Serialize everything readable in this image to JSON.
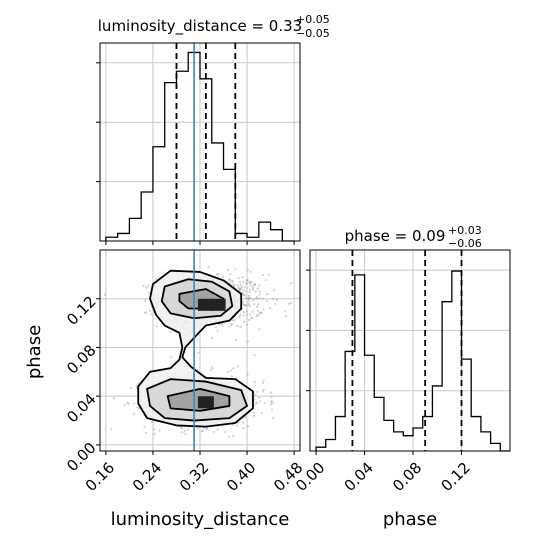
{
  "colors": {
    "truth": "#4682b4",
    "hist": "#000000",
    "grid": "#c8c8c8",
    "contour": "#000000",
    "scatter": "#9a9a9a"
  },
  "chart_data": [
    {
      "type": "histogram",
      "panel": "top-left",
      "parameter": "luminosity_distance",
      "title_main": "luminosity_distance = 0.33",
      "title_sup": "+0.05",
      "title_sub": "−0.05",
      "xlim": [
        0.15,
        0.49
      ],
      "ylim": [
        0,
        1
      ],
      "bin_edges": [
        0.16,
        0.18,
        0.2,
        0.22,
        0.24,
        0.26,
        0.28,
        0.3,
        0.32,
        0.34,
        0.36,
        0.38,
        0.4,
        0.42,
        0.44,
        0.46,
        0.48
      ],
      "counts": [
        0.02,
        0.04,
        0.12,
        0.26,
        0.5,
        0.84,
        0.9,
        1.0,
        0.86,
        0.52,
        0.38,
        0.04,
        0.02,
        0.1,
        0.06,
        0.0
      ],
      "quantiles": [
        0.28,
        0.33,
        0.38
      ],
      "truth": 0.31,
      "xticks": [
        0.16,
        0.24,
        0.32,
        0.4,
        0.48
      ],
      "show_tick_labels": false
    },
    {
      "type": "scatter",
      "panel": "bottom-left",
      "xlabel": "luminosity_distance",
      "ylabel": "phase",
      "xlim": [
        0.15,
        0.49
      ],
      "ylim": [
        -0.005,
        0.16
      ],
      "xticks": [
        0.16,
        0.24,
        0.32,
        0.4,
        0.48
      ],
      "xtick_labels": [
        "0.16",
        "0.24",
        "0.32",
        "0.40",
        "0.48"
      ],
      "yticks": [
        0.0,
        0.04,
        0.08,
        0.12
      ],
      "ytick_labels": [
        "0.00",
        "0.04",
        "0.08",
        "0.12"
      ],
      "truth": 0.31,
      "clusters": [
        {
          "x": 0.34,
          "y": 0.118,
          "sx": 0.045,
          "sy": 0.011
        },
        {
          "x": 0.33,
          "y": 0.036,
          "sx": 0.05,
          "sy": 0.011
        }
      ],
      "contours": [
        {
          "level": 1,
          "fill": "#f0f0f0",
          "pts": [
            [
              0.24,
              0.132
            ],
            [
              0.27,
              0.143
            ],
            [
              0.32,
              0.142
            ],
            [
              0.36,
              0.135
            ],
            [
              0.39,
              0.124
            ],
            [
              0.39,
              0.112
            ],
            [
              0.37,
              0.102
            ],
            [
              0.33,
              0.098
            ],
            [
              0.31,
              0.088
            ],
            [
              0.295,
              0.08
            ],
            [
              0.29,
              0.072
            ],
            [
              0.305,
              0.064
            ],
            [
              0.33,
              0.055
            ],
            [
              0.38,
              0.054
            ],
            [
              0.41,
              0.044
            ],
            [
              0.41,
              0.03
            ],
            [
              0.38,
              0.018
            ],
            [
              0.33,
              0.015
            ],
            [
              0.28,
              0.016
            ],
            [
              0.23,
              0.022
            ],
            [
              0.215,
              0.034
            ],
            [
              0.215,
              0.048
            ],
            [
              0.235,
              0.06
            ],
            [
              0.27,
              0.063
            ],
            [
              0.285,
              0.07
            ],
            [
              0.29,
              0.08
            ],
            [
              0.285,
              0.092
            ],
            [
              0.26,
              0.098
            ],
            [
              0.245,
              0.107
            ],
            [
              0.235,
              0.12
            ]
          ]
        },
        {
          "level": 2,
          "fill": "#d4d4d4",
          "pts": [
            [
              0.26,
              0.13
            ],
            [
              0.3,
              0.136
            ],
            [
              0.34,
              0.134
            ],
            [
              0.37,
              0.126
            ],
            [
              0.375,
              0.114
            ],
            [
              0.355,
              0.106
            ],
            [
              0.31,
              0.104
            ],
            [
              0.27,
              0.108
            ],
            [
              0.255,
              0.118
            ]
          ]
        },
        {
          "level": 3,
          "fill": "#9a9a9a",
          "pts": [
            [
              0.285,
              0.124
            ],
            [
              0.33,
              0.128
            ],
            [
              0.36,
              0.12
            ],
            [
              0.345,
              0.112
            ],
            [
              0.3,
              0.112
            ],
            [
              0.285,
              0.118
            ]
          ]
        },
        {
          "level": 2,
          "fill": "#d4d4d4",
          "pts": [
            [
              0.23,
              0.046
            ],
            [
              0.27,
              0.054
            ],
            [
              0.33,
              0.052
            ],
            [
              0.39,
              0.045
            ],
            [
              0.4,
              0.032
            ],
            [
              0.37,
              0.022
            ],
            [
              0.31,
              0.02
            ],
            [
              0.26,
              0.022
            ],
            [
              0.235,
              0.032
            ]
          ]
        },
        {
          "level": 3,
          "fill": "#9a9a9a",
          "pts": [
            [
              0.265,
              0.04
            ],
            [
              0.32,
              0.046
            ],
            [
              0.37,
              0.04
            ],
            [
              0.37,
              0.032
            ],
            [
              0.32,
              0.028
            ],
            [
              0.27,
              0.03
            ]
          ]
        }
      ],
      "dark_cells": [
        {
          "x": 0.33,
          "y": 0.115
        },
        {
          "x": 0.35,
          "y": 0.115
        },
        {
          "x": 0.33,
          "y": 0.035
        }
      ]
    },
    {
      "type": "histogram",
      "panel": "bottom-right",
      "parameter": "phase",
      "title_main": "phase = 0.09",
      "title_sup": "+0.03",
      "title_sub": "−0.06",
      "xlabel": "phase",
      "xlim": [
        -0.005,
        0.16
      ],
      "ylim": [
        0,
        1
      ],
      "bin_edges": [
        0.0,
        0.008,
        0.016,
        0.024,
        0.032,
        0.04,
        0.048,
        0.056,
        0.064,
        0.072,
        0.08,
        0.088,
        0.096,
        0.104,
        0.112,
        0.12,
        0.128,
        0.136,
        0.144,
        0.152,
        0.16
      ],
      "counts": [
        0.02,
        0.06,
        0.18,
        0.52,
        0.92,
        0.5,
        0.28,
        0.16,
        0.1,
        0.08,
        0.12,
        0.18,
        0.34,
        0.78,
        0.94,
        0.48,
        0.18,
        0.1,
        0.04,
        0.0
      ],
      "quantiles": [
        0.03,
        0.09,
        0.12
      ],
      "xticks": [
        0.0,
        0.04,
        0.08,
        0.12
      ],
      "xtick_labels": [
        "0.00",
        "0.04",
        "0.08",
        "0.12"
      ]
    }
  ]
}
